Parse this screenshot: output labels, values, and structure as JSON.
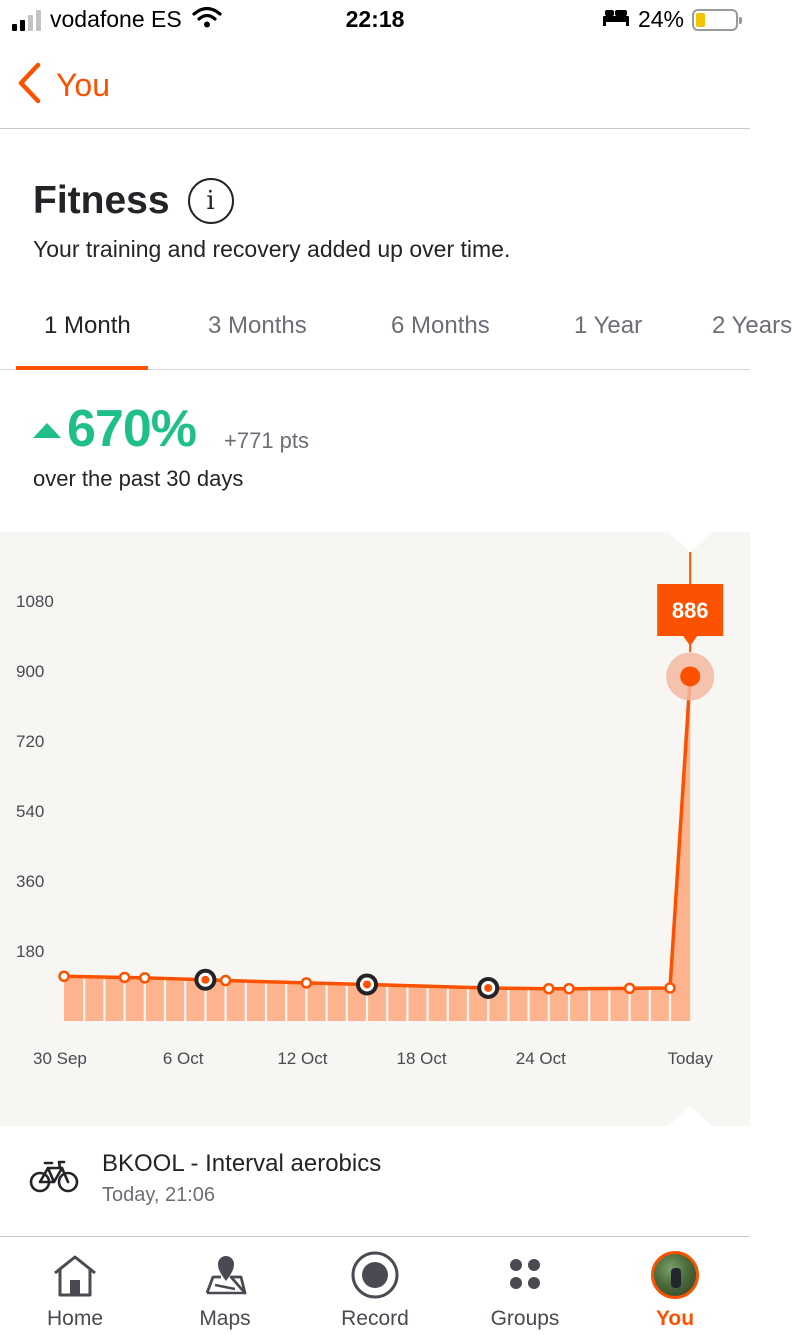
{
  "status_bar": {
    "carrier": "vodafone ES",
    "time": "22:18",
    "battery_percent": "24%",
    "battery_level": 0.24,
    "icons": [
      "signal-icon",
      "wifi-icon",
      "bed-icon",
      "battery-icon"
    ]
  },
  "nav": {
    "back_label": "You"
  },
  "header": {
    "title": "Fitness",
    "info_symbol": "i",
    "subtitle": "Your training and recovery added up over time."
  },
  "tabs": [
    {
      "label": "1 Month",
      "active": true
    },
    {
      "label": "3 Months",
      "active": false
    },
    {
      "label": "6 Months",
      "active": false
    },
    {
      "label": "1 Year",
      "active": false
    },
    {
      "label": "2 Years",
      "active": false
    }
  ],
  "summary": {
    "change_percent": "670%",
    "change_points": "+771 pts",
    "period": "over the past 30 days"
  },
  "chart_data": {
    "type": "area",
    "y_ticks": [
      "1080",
      "900",
      "720",
      "540",
      "360",
      "180"
    ],
    "ylim": [
      0,
      1160
    ],
    "x_tick_labels": [
      "30 Sep",
      "6 Oct",
      "12 Oct",
      "18 Oct",
      "24 Oct",
      "Today"
    ],
    "x_tick_days": [
      0,
      6,
      12,
      18,
      24,
      30
    ],
    "series": [
      {
        "days": [
          0,
          3,
          4,
          7,
          8,
          12,
          15,
          21,
          24,
          25,
          28,
          30,
          31
        ],
        "values": [
          115,
          112,
          111,
          106,
          104,
          98,
          94,
          85,
          83,
          83,
          84,
          85,
          886
        ],
        "activity_days": [
          7,
          15,
          21
        ]
      }
    ],
    "selected_value": "886",
    "selected_day": 31,
    "colors": {
      "line": "#fc5200",
      "fill": "#fdb38e",
      "activity_ring": "#242428"
    }
  },
  "activity": {
    "icon": "bike-icon",
    "title": "BKOOL - Interval aerobics",
    "time": "Today, 21:06"
  },
  "tabbar": [
    {
      "label": "Home",
      "icon": "home-icon",
      "active": false
    },
    {
      "label": "Maps",
      "icon": "maps-icon",
      "active": false
    },
    {
      "label": "Record",
      "icon": "record-icon",
      "active": false
    },
    {
      "label": "Groups",
      "icon": "groups-icon",
      "active": false
    },
    {
      "label": "You",
      "icon": "avatar",
      "active": true
    }
  ],
  "colors": {
    "accent": "#fc5200",
    "positive": "#1fbf8a"
  }
}
